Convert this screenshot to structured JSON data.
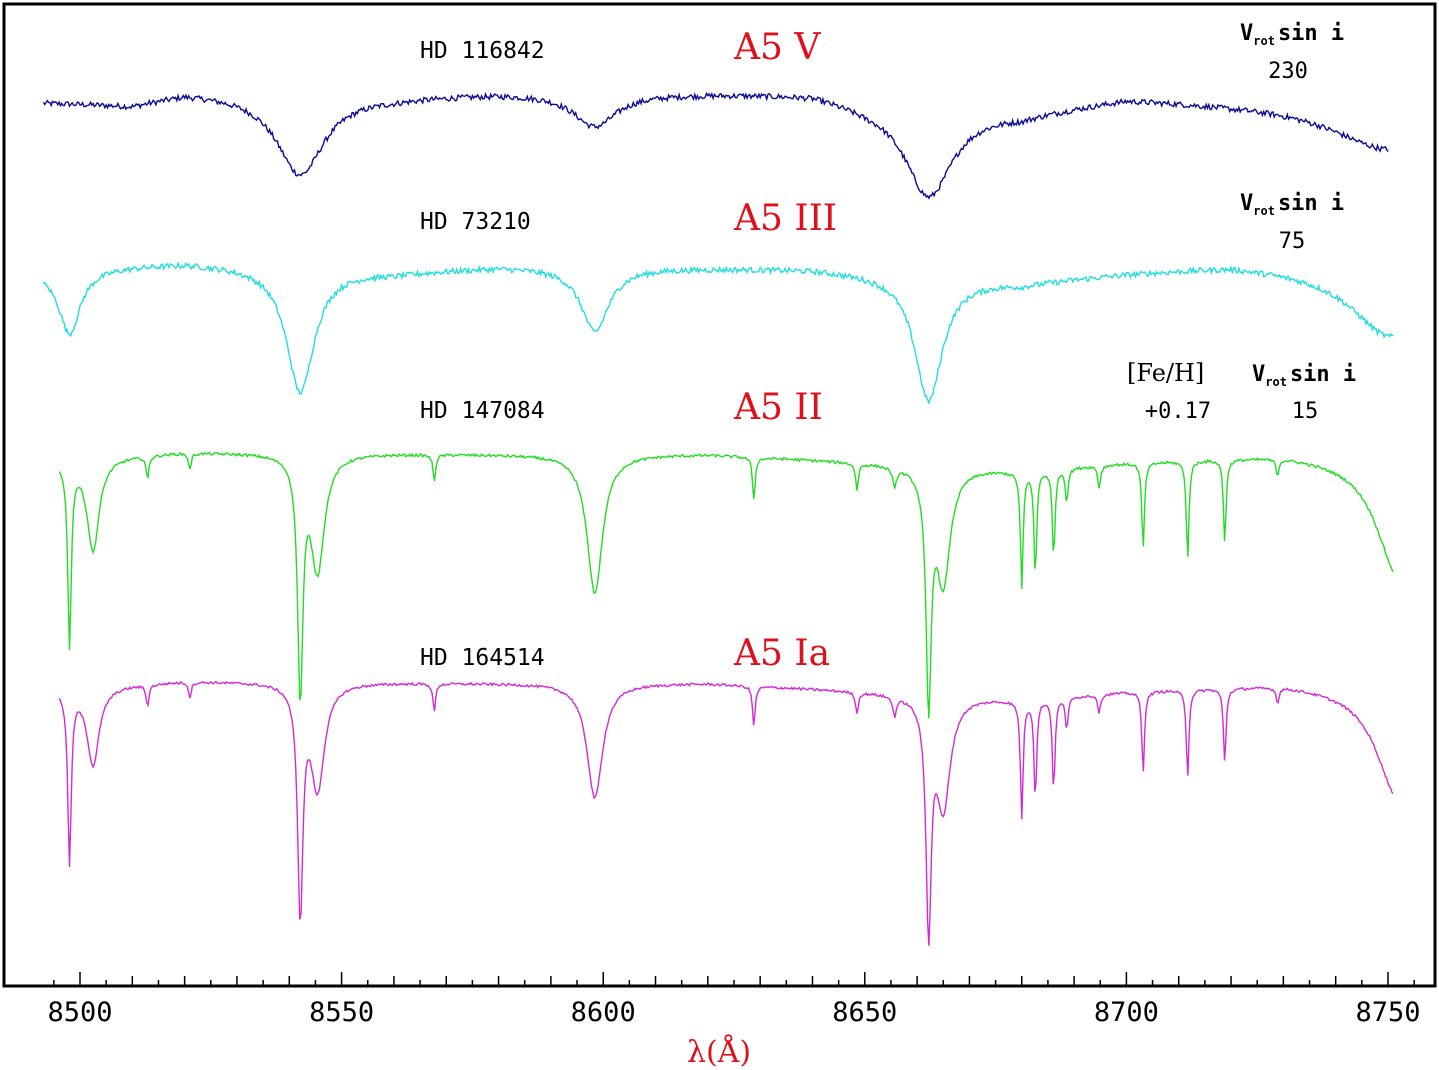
{
  "chart_data": {
    "type": "line",
    "xlabel": "λ(Å)",
    "xlim": [
      8493,
      8755
    ],
    "xticks": [
      8500,
      8550,
      8600,
      8650,
      8700,
      8750
    ],
    "xtick_labels": [
      "8500",
      "8550",
      "8600",
      "8650",
      "8700",
      "8750"
    ],
    "yticks": "none",
    "grid": false,
    "series": [
      {
        "name": "HD 116842",
        "spectral_type": "A5 V",
        "color": "#0a0a96",
        "x_range": [
          8493,
          8750
        ],
        "continuum": 1.0,
        "noise": 0.006,
        "lines": [
          {
            "center": 8542.1,
            "depth": 0.17,
            "width": 5.5
          },
          {
            "center": 8598.4,
            "depth": 0.07,
            "width": 5.0
          },
          {
            "center": 8662.2,
            "depth": 0.19,
            "width": 5.5
          },
          {
            "center": 8750.5,
            "depth": 0.1,
            "width": 14.0
          }
        ],
        "annotations": [
          {
            "label": "V",
            "sub": "rot",
            "suffix": "sin i",
            "value": "230"
          }
        ]
      },
      {
        "name": "HD 73210",
        "spectral_type": "A5 III",
        "color": "#21dde0",
        "x_range": [
          8493,
          8751
        ],
        "continuum": 1.0,
        "noise": 0.006,
        "lines": [
          {
            "center": 8498.0,
            "depth": 0.14,
            "width": 2.5
          },
          {
            "center": 8542.1,
            "depth": 0.27,
            "width": 3.2
          },
          {
            "center": 8598.4,
            "depth": 0.14,
            "width": 3.2
          },
          {
            "center": 8662.2,
            "depth": 0.27,
            "width": 3.2
          },
          {
            "center": 8750.5,
            "depth": 0.14,
            "width": 9.0
          }
        ],
        "annotations": [
          {
            "label": "V",
            "sub": "rot",
            "suffix": "sin i",
            "value": "75"
          }
        ]
      },
      {
        "name": "HD 147084",
        "spectral_type": "A5 II",
        "color": "#22dd22",
        "x_range": [
          8496,
          8751
        ],
        "continuum": 1.0,
        "noise": 0.004,
        "lines": [
          {
            "center": 8498.0,
            "depth": 0.55,
            "width": 0.4
          },
          {
            "center": 8502.5,
            "depth": 0.28,
            "width": 1.4
          },
          {
            "center": 8542.1,
            "depth": 0.7,
            "width": 0.6
          },
          {
            "center": 8545.4,
            "depth": 0.35,
            "width": 1.6
          },
          {
            "center": 8598.4,
            "depth": 0.42,
            "width": 1.8
          },
          {
            "center": 8662.2,
            "depth": 0.68,
            "width": 0.6
          },
          {
            "center": 8665.0,
            "depth": 0.35,
            "width": 1.6
          },
          {
            "center": 8680.0,
            "depth": 0.35,
            "width": 0.3
          },
          {
            "center": 8682.6,
            "depth": 0.32,
            "width": 0.3
          },
          {
            "center": 8686.1,
            "depth": 0.27,
            "width": 0.3
          },
          {
            "center": 8703.2,
            "depth": 0.26,
            "width": 0.3
          },
          {
            "center": 8711.7,
            "depth": 0.3,
            "width": 0.3
          },
          {
            "center": 8718.8,
            "depth": 0.25,
            "width": 0.3
          },
          {
            "center": 8512.9,
            "depth": 0.07,
            "width": 0.3
          },
          {
            "center": 8521.0,
            "depth": 0.05,
            "width": 0.3
          },
          {
            "center": 8567.7,
            "depth": 0.08,
            "width": 0.3
          },
          {
            "center": 8628.8,
            "depth": 0.13,
            "width": 0.3
          },
          {
            "center": 8648.5,
            "depth": 0.08,
            "width": 0.3
          },
          {
            "center": 8655.7,
            "depth": 0.06,
            "width": 0.4
          },
          {
            "center": 8688.6,
            "depth": 0.1,
            "width": 0.3
          },
          {
            "center": 8694.8,
            "depth": 0.07,
            "width": 0.3
          },
          {
            "center": 8728.9,
            "depth": 0.05,
            "width": 0.3
          },
          {
            "center": 8752.0,
            "depth": 0.35,
            "width": 5.0
          }
        ],
        "annotations": [
          {
            "label": "[Fe/H]",
            "value": "+0.17"
          },
          {
            "label": "V",
            "sub": "rot",
            "suffix": "sin i",
            "value": "15"
          }
        ]
      },
      {
        "name": "HD 164514",
        "spectral_type": "A5 Ia",
        "color": "#d42ad4",
        "x_range": [
          8496,
          8751
        ],
        "continuum": 1.0,
        "noise": 0.004,
        "lines": [
          {
            "center": 8498.0,
            "depth": 0.55,
            "width": 0.4
          },
          {
            "center": 8502.5,
            "depth": 0.25,
            "width": 1.4
          },
          {
            "center": 8542.1,
            "depth": 0.72,
            "width": 0.6
          },
          {
            "center": 8545.4,
            "depth": 0.34,
            "width": 1.6
          },
          {
            "center": 8598.4,
            "depth": 0.37,
            "width": 1.8
          },
          {
            "center": 8662.2,
            "depth": 0.72,
            "width": 0.6
          },
          {
            "center": 8665.0,
            "depth": 0.36,
            "width": 1.6
          },
          {
            "center": 8680.0,
            "depth": 0.38,
            "width": 0.3
          },
          {
            "center": 8682.6,
            "depth": 0.32,
            "width": 0.3
          },
          {
            "center": 8686.1,
            "depth": 0.3,
            "width": 0.3
          },
          {
            "center": 8703.2,
            "depth": 0.26,
            "width": 0.3
          },
          {
            "center": 8711.7,
            "depth": 0.28,
            "width": 0.3
          },
          {
            "center": 8718.8,
            "depth": 0.24,
            "width": 0.3
          },
          {
            "center": 8512.9,
            "depth": 0.07,
            "width": 0.3
          },
          {
            "center": 8521.0,
            "depth": 0.05,
            "width": 0.3
          },
          {
            "center": 8567.7,
            "depth": 0.09,
            "width": 0.3
          },
          {
            "center": 8628.8,
            "depth": 0.13,
            "width": 0.3
          },
          {
            "center": 8648.5,
            "depth": 0.07,
            "width": 0.3
          },
          {
            "center": 8655.7,
            "depth": 0.06,
            "width": 0.4
          },
          {
            "center": 8688.6,
            "depth": 0.1,
            "width": 0.3
          },
          {
            "center": 8694.8,
            "depth": 0.06,
            "width": 0.3
          },
          {
            "center": 8728.9,
            "depth": 0.05,
            "width": 0.3
          },
          {
            "center": 8752.0,
            "depth": 0.35,
            "width": 5.0
          }
        ]
      }
    ]
  },
  "labels": {
    "s1_name": "HD 116842",
    "s1_type": "A5 V",
    "s2_name": "HD 73210",
    "s2_type": "A5 III",
    "s3_name": "HD 147084",
    "s3_type": "A5 II",
    "s4_name": "HD 164514",
    "s4_type": "A5 Ia",
    "vrot_v": "V",
    "vrot_sub": "rot",
    "vrot_suffix": "sin i",
    "vrot1": "230",
    "vrot2": "75",
    "vrot3": "15",
    "feh_label": "[Fe/H]",
    "feh_value": "+0.17"
  }
}
